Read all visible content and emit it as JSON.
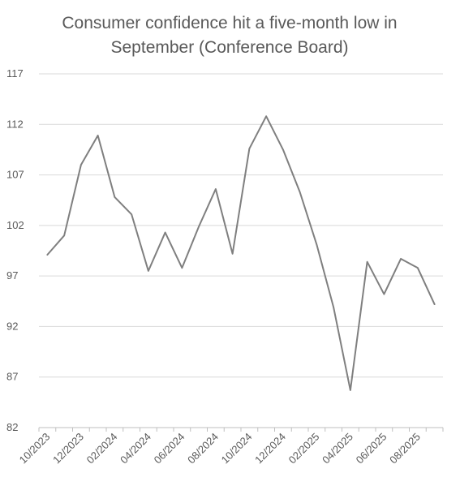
{
  "chart_data": {
    "type": "line",
    "title_lines": [
      "Consumer confidence hit a five-month low in",
      "September (Conference Board)"
    ],
    "xlabel": "",
    "ylabel": "",
    "ylim": [
      82,
      117
    ],
    "yticks": [
      82,
      87,
      92,
      97,
      102,
      107,
      112,
      117
    ],
    "xtick_labels": [
      "10/2023",
      "12/2023",
      "02/2024",
      "04/2024",
      "06/2024",
      "08/2024",
      "10/2024",
      "12/2024",
      "02/2025",
      "04/2025",
      "06/2025",
      "08/2025"
    ],
    "grid": "horizontal",
    "legend": "none",
    "line_color": "#7f7f7f",
    "x": [
      "10/2023",
      "11/2023",
      "12/2023",
      "01/2024",
      "02/2024",
      "03/2024",
      "04/2024",
      "05/2024",
      "06/2024",
      "07/2024",
      "08/2024",
      "09/2024",
      "10/2024",
      "11/2024",
      "12/2024",
      "01/2025",
      "02/2025",
      "03/2025",
      "04/2025",
      "05/2025",
      "06/2025",
      "07/2025",
      "08/2025",
      "09/2025"
    ],
    "series": [
      {
        "values": [
          99.1,
          101.0,
          108.0,
          110.9,
          104.8,
          103.1,
          97.5,
          101.3,
          97.8,
          101.9,
          105.6,
          99.2,
          109.6,
          112.8,
          109.5,
          105.3,
          100.1,
          93.9,
          85.7,
          98.4,
          95.2,
          98.7,
          97.8,
          94.2
        ]
      }
    ]
  }
}
